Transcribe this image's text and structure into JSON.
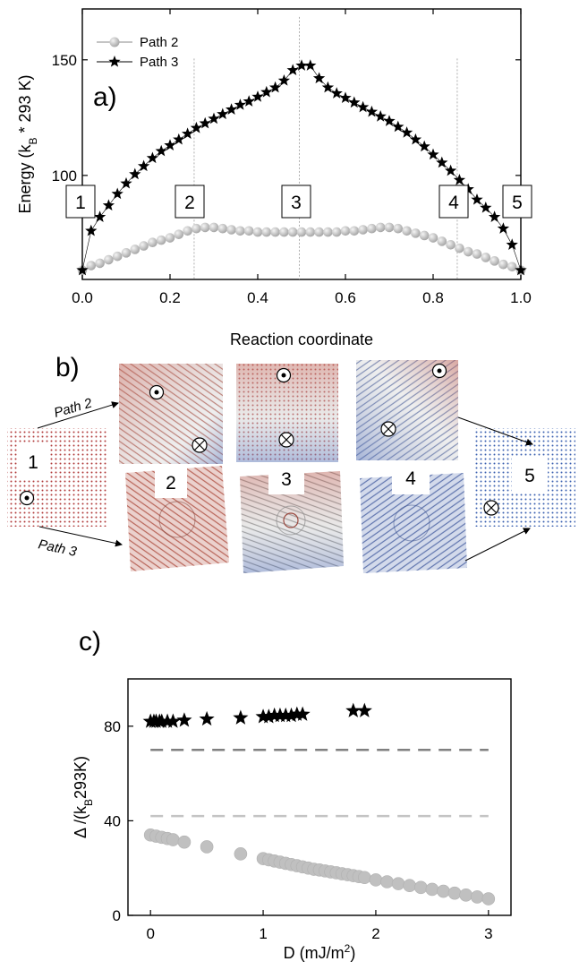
{
  "panel_a": {
    "label": "a)",
    "markers": [
      "1",
      "2",
      "3",
      "4",
      "5"
    ]
  },
  "panel_b": {
    "label": "b)",
    "path2_label": "Path 2",
    "path3_label": "Path 3",
    "states_top": [
      "1",
      "5"
    ],
    "states_path3": [
      "2",
      "3",
      "4"
    ],
    "colors": {
      "red": "#b03a3a",
      "blue": "#3a5fb0",
      "grey": "#8a8a8a"
    }
  },
  "panel_c": {
    "label": "c)"
  },
  "chart_data": [
    {
      "type": "scatter",
      "xlabel": "Reaction coordinate",
      "ylabel": "Energy (k_B * 293 K)",
      "xlim": [
        0.0,
        1.0
      ],
      "ylim": [
        55,
        172
      ],
      "xticks": [
        "0.0",
        "0.2",
        "0.4",
        "0.6",
        "0.8",
        "1.0"
      ],
      "yticks": [
        "100",
        "150"
      ],
      "legend_position": "top-left",
      "vlines_x": [
        0.255,
        0.495,
        0.855
      ],
      "series": [
        {
          "name": "Path 2",
          "marker": "circle",
          "color": "#c8c8c8",
          "x": [
            0.0,
            0.02,
            0.04,
            0.06,
            0.08,
            0.1,
            0.12,
            0.14,
            0.16,
            0.18,
            0.2,
            0.22,
            0.24,
            0.26,
            0.28,
            0.3,
            0.32,
            0.34,
            0.36,
            0.38,
            0.4,
            0.42,
            0.44,
            0.46,
            0.48,
            0.5,
            0.52,
            0.54,
            0.56,
            0.58,
            0.6,
            0.62,
            0.64,
            0.66,
            0.68,
            0.7,
            0.72,
            0.74,
            0.76,
            0.78,
            0.8,
            0.82,
            0.84,
            0.86,
            0.88,
            0.9,
            0.92,
            0.94,
            0.96,
            0.98,
            1.0
          ],
          "y": [
            59,
            61,
            62,
            63.5,
            65,
            66.5,
            68,
            69.5,
            71,
            72,
            73,
            74.5,
            76,
            77,
            77.5,
            77.5,
            77,
            76.5,
            76,
            76,
            75.5,
            75.5,
            75.5,
            75.5,
            75.5,
            75.5,
            75.5,
            75.5,
            75.5,
            75.5,
            76,
            76,
            76.5,
            77,
            77.5,
            77.5,
            77,
            76,
            75,
            74,
            73,
            71.5,
            70,
            68.5,
            67,
            66,
            64.5,
            63,
            61.5,
            60.5,
            59
          ]
        },
        {
          "name": "Path 3",
          "marker": "star",
          "color": "#000000",
          "x": [
            0.0,
            0.02,
            0.04,
            0.06,
            0.08,
            0.1,
            0.12,
            0.14,
            0.16,
            0.18,
            0.2,
            0.22,
            0.24,
            0.26,
            0.28,
            0.3,
            0.32,
            0.34,
            0.36,
            0.38,
            0.4,
            0.42,
            0.44,
            0.46,
            0.48,
            0.5,
            0.52,
            0.54,
            0.56,
            0.58,
            0.6,
            0.62,
            0.64,
            0.66,
            0.68,
            0.7,
            0.72,
            0.74,
            0.76,
            0.78,
            0.8,
            0.82,
            0.84,
            0.86,
            0.88,
            0.9,
            0.92,
            0.94,
            0.96,
            0.98,
            1.0
          ],
          "y": [
            59,
            76,
            82,
            87,
            92,
            96.5,
            100.5,
            104,
            107.5,
            110.5,
            113,
            115.5,
            118,
            120.5,
            122.5,
            124.5,
            126.5,
            128.5,
            130.5,
            132,
            134,
            136,
            138,
            141,
            145.5,
            147.5,
            147.5,
            142,
            138,
            135.5,
            133.5,
            131.5,
            129.5,
            127.5,
            125.5,
            123.5,
            121,
            118.5,
            115.5,
            112.5,
            109,
            105.5,
            102,
            98,
            94,
            89.5,
            86,
            82,
            77,
            70,
            59
          ]
        }
      ]
    },
    {
      "type": "scatter",
      "xlabel": "D (mJ/m²)",
      "ylabel": "Δ /(k_B293K)",
      "xlim": [
        -0.2,
        3.2
      ],
      "ylim": [
        0,
        100
      ],
      "xticks": [
        "0",
        "1",
        "2",
        "3"
      ],
      "yticks": [
        "0",
        "40",
        "80"
      ],
      "hlines_y": [
        70,
        42
      ],
      "series": [
        {
          "marker": "star",
          "color": "#000000",
          "x": [
            0.0,
            0.03,
            0.05,
            0.08,
            0.1,
            0.15,
            0.2,
            0.3,
            0.5,
            0.8,
            1.0,
            1.05,
            1.1,
            1.15,
            1.2,
            1.25,
            1.3,
            1.35,
            1.8,
            1.9
          ],
          "y": [
            82,
            82,
            82,
            82,
            82,
            82,
            82,
            82.5,
            83,
            83.5,
            84,
            84,
            84.5,
            84.5,
            84.5,
            84.5,
            85,
            85,
            86.5,
            86.5
          ]
        },
        {
          "marker": "circle",
          "color": "#c0c0c0",
          "x": [
            0.0,
            0.05,
            0.1,
            0.15,
            0.2,
            0.3,
            0.5,
            0.8,
            1.0,
            1.05,
            1.1,
            1.15,
            1.2,
            1.25,
            1.3,
            1.35,
            1.4,
            1.45,
            1.5,
            1.55,
            1.6,
            1.65,
            1.7,
            1.75,
            1.8,
            1.85,
            1.9,
            2.0,
            2.1,
            2.2,
            2.3,
            2.4,
            2.5,
            2.6,
            2.7,
            2.8,
            2.9,
            3.0
          ],
          "y": [
            34,
            33.5,
            33,
            32.5,
            32,
            31,
            29,
            26,
            24,
            23.5,
            23,
            22.5,
            22,
            21.5,
            21,
            20.5,
            20,
            19.5,
            19.2,
            18.8,
            18.4,
            18,
            17.6,
            17.2,
            16.8,
            16.4,
            16,
            15,
            14.2,
            13.4,
            12.6,
            11.8,
            11,
            10.2,
            9.4,
            8.6,
            7.8,
            7
          ]
        }
      ]
    }
  ]
}
